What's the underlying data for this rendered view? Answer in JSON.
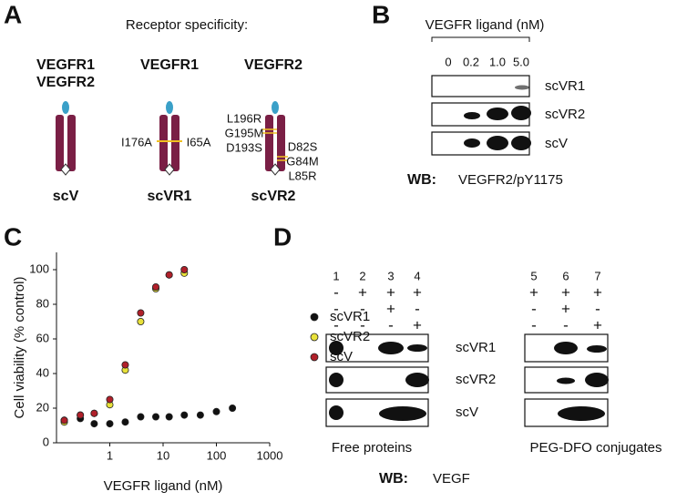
{
  "panel_a": {
    "letter": "A",
    "title": "Receptor specificity:",
    "columns": [
      {
        "header": [
          "VEGFR1",
          "VEGFR2"
        ],
        "name": "scV",
        "left_mutations": [],
        "right_mutations": []
      },
      {
        "header": [
          "VEGFR1"
        ],
        "name": "scVR1",
        "left_mutations": [
          "I176A"
        ],
        "right_mutations": [
          "I65A"
        ]
      },
      {
        "header": [
          "VEGFR2"
        ],
        "name": "scVR2",
        "left_mutations": [
          "L196R",
          "G195M",
          "D193S"
        ],
        "right_mutations": [
          "D82S",
          "G84M",
          "L85R"
        ]
      }
    ]
  },
  "panel_b": {
    "letter": "B",
    "ligand_label": "VEGFR ligand (nM)",
    "concentrations": [
      "0",
      "0.2",
      "1.0",
      "5.0"
    ],
    "rows": [
      "scVR1",
      "scVR2",
      "scV"
    ],
    "wb_label": "WB:",
    "wb_antibody": "VEGFR2/pY1175"
  },
  "panel_c": {
    "letter": "C"
  },
  "chart_data": {
    "type": "scatter",
    "xlabel": "VEGFR ligand (nM)",
    "ylabel": "Cell viability  (% control)",
    "xscale": "log",
    "xlim": [
      0.1,
      1000
    ],
    "ylim": [
      0,
      110
    ],
    "xticks": [
      1,
      10,
      100,
      1000
    ],
    "yticks": [
      0,
      20,
      40,
      60,
      80,
      100
    ],
    "legend": "right",
    "series": [
      {
        "name": "scVR1",
        "color": "#111111",
        "x": [
          0.14,
          0.28,
          0.51,
          1,
          1.95,
          3.8,
          7.3,
          13,
          25,
          50,
          100,
          200
        ],
        "values": [
          13,
          14,
          11,
          11,
          12,
          15,
          15,
          15,
          16,
          16,
          18,
          20
        ]
      },
      {
        "name": "scVR2",
        "color": "#e8e13a",
        "x": [
          0.14,
          0.28,
          0.51,
          1,
          1.95,
          3.8,
          7.3,
          13,
          25
        ],
        "values": [
          12,
          16,
          17,
          22,
          42,
          70,
          89,
          97,
          98
        ]
      },
      {
        "name": "scV",
        "color": "#b0202a",
        "x": [
          0.14,
          0.28,
          0.51,
          1,
          1.95,
          3.8,
          7.3,
          13,
          25
        ],
        "values": [
          13,
          16,
          17,
          25,
          45,
          75,
          90,
          97,
          100
        ]
      }
    ]
  },
  "panel_d": {
    "letter": "D",
    "lanes": [
      "1",
      "2",
      "3",
      "4",
      "5",
      "6",
      "7"
    ],
    "signs": [
      [
        "-",
        "+",
        "+",
        "+",
        "+",
        "+",
        "+"
      ],
      [
        "-",
        "-",
        "+",
        "-",
        "-",
        "+",
        "-"
      ],
      [
        "-",
        "-",
        "-",
        "+",
        "-",
        "-",
        "+"
      ]
    ],
    "rows": [
      "scVR1",
      "scVR2",
      "scV"
    ],
    "groups": [
      "Free proteins",
      "PEG-DFO conjugates"
    ],
    "wb_label": "WB:",
    "wb_antibody": "VEGF"
  }
}
